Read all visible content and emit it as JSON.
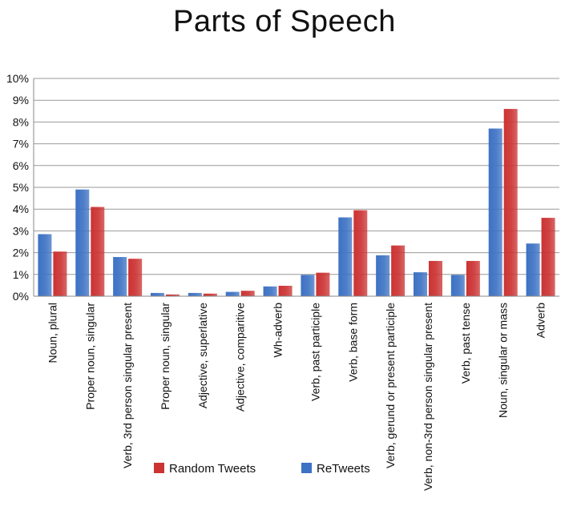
{
  "chart_data": {
    "type": "bar",
    "title": "Parts of Speech",
    "xlabel": "",
    "ylabel": "",
    "ylim": [
      0,
      10
    ],
    "y_ticks": [
      "0%",
      "1%",
      "2%",
      "3%",
      "4%",
      "5%",
      "6%",
      "7%",
      "8%",
      "9%",
      "10%"
    ],
    "grid": true,
    "legend_position": "bottom",
    "categories": [
      "Noun, plural",
      "Proper noun, singular",
      "Verb, 3rd person singular present",
      "Proper noun, singular",
      "Adjective, superlative",
      "Adjective, comparitive",
      "Wh-adverb",
      "Verb, past participle",
      "Verb, base form",
      "Verb, gerund or present participle",
      "Verb, non-3rd person singular present",
      "Verb, past tense",
      "Noun, singular or mass",
      "Adverb"
    ],
    "series": [
      {
        "name": "ReTweets",
        "color": "#3d72c4",
        "values": [
          2.85,
          4.9,
          1.8,
          0.15,
          0.15,
          0.2,
          0.45,
          0.98,
          3.62,
          1.88,
          1.1,
          0.98,
          7.7,
          2.42
        ]
      },
      {
        "name": "Random Tweets",
        "color": "#cc3333",
        "values": [
          2.05,
          4.1,
          1.72,
          0.08,
          0.12,
          0.25,
          0.48,
          1.08,
          3.95,
          2.33,
          1.62,
          1.62,
          8.6,
          3.6
        ]
      }
    ]
  }
}
